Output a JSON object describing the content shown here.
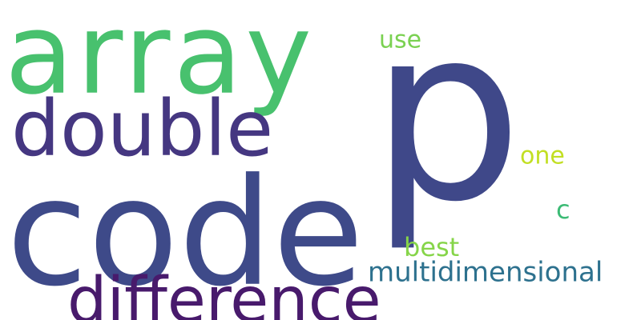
{
  "words": [
    {
      "key": "array",
      "text": "array",
      "color": "#48c16e"
    },
    {
      "key": "p",
      "text": "p",
      "color": "#3f4889"
    },
    {
      "key": "double",
      "text": "double",
      "color": "#453781"
    },
    {
      "key": "code",
      "text": "code",
      "color": "#3e4a89"
    },
    {
      "key": "difference",
      "text": "difference",
      "color": "#481a6c"
    },
    {
      "key": "use",
      "text": "use",
      "color": "#7ad151"
    },
    {
      "key": "one",
      "text": "one",
      "color": "#c2df23"
    },
    {
      "key": "c",
      "text": "c",
      "color": "#3cbb75"
    },
    {
      "key": "best",
      "text": "best",
      "color": "#86d549"
    },
    {
      "key": "multidimensional",
      "text": "multidimensional",
      "color": "#2d718e"
    }
  ]
}
